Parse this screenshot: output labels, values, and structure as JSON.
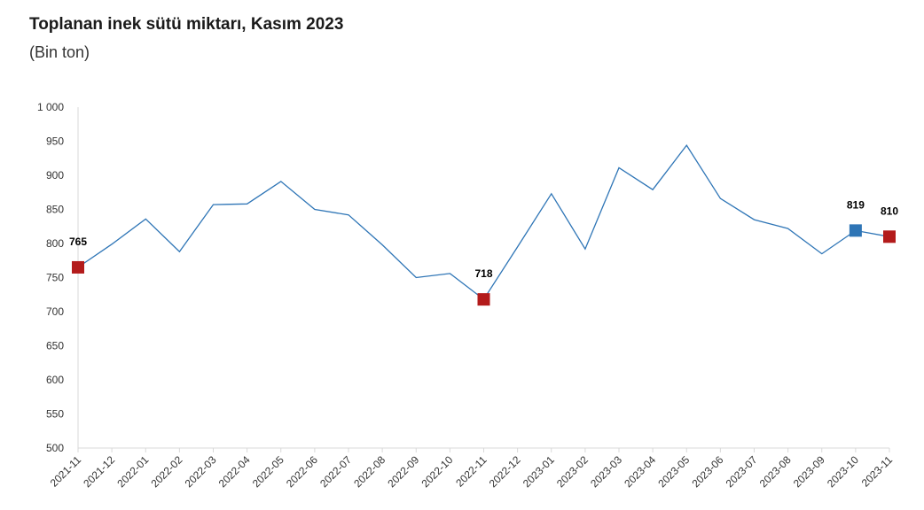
{
  "chart_data": {
    "type": "line",
    "title": "Toplanan inek sütü miktarı, Kasım 2023",
    "subtitle": "(Bin ton)",
    "ylim": [
      500,
      1000
    ],
    "yticks": [
      500,
      550,
      600,
      650,
      700,
      750,
      800,
      850,
      900,
      950,
      1000
    ],
    "ytick_labels": [
      "500",
      "550",
      "600",
      "650",
      "700",
      "750",
      "800",
      "850",
      "900",
      "950",
      "1 000"
    ],
    "categories": [
      "2021-11",
      "2021-12",
      "2022-01",
      "2022-02",
      "2022-03",
      "2022-04",
      "2022-05",
      "2022-06",
      "2022-07",
      "2022-08",
      "2022-09",
      "2022-10",
      "2022-11",
      "2022-12",
      "2023-01",
      "2023-02",
      "2023-03",
      "2023-04",
      "2023-05",
      "2023-06",
      "2023-07",
      "2023-08",
      "2023-09",
      "2023-10",
      "2023-11"
    ],
    "series": [
      {
        "values": [
          765,
          799,
          836,
          788,
          857,
          858,
          891,
          850,
          842,
          798,
          750,
          756,
          718,
          795,
          873,
          792,
          911,
          879,
          944,
          866,
          835,
          822,
          785,
          819,
          810
        ],
        "color": "#2e75b6"
      }
    ],
    "highlights": [
      {
        "index": 0,
        "label": "765",
        "color": "#b31b1b"
      },
      {
        "index": 12,
        "label": "718",
        "color": "#b31b1b"
      },
      {
        "index": 23,
        "label": "819",
        "color": "#2e75b6"
      },
      {
        "index": 24,
        "label": "810",
        "color": "#b31b1b"
      }
    ],
    "grid": false
  }
}
